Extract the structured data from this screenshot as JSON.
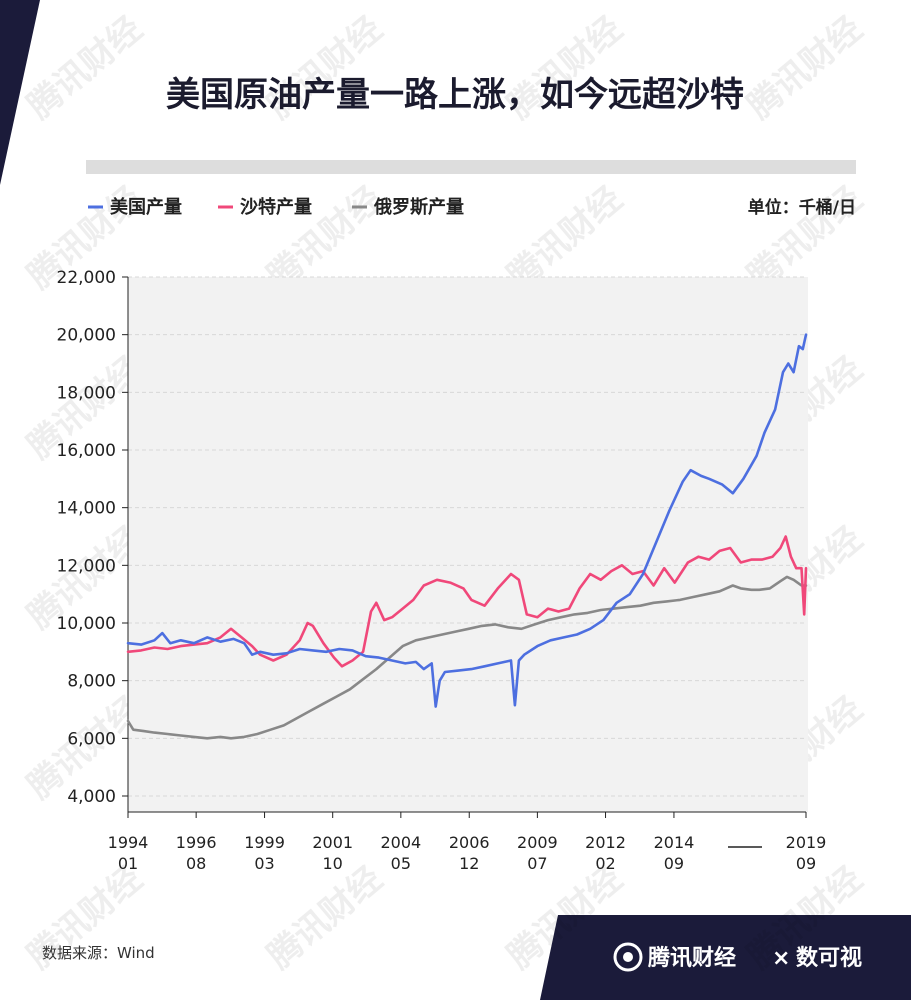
{
  "header": {
    "title": "美国原油产量一路上涨，如今远超沙特"
  },
  "legend": {
    "items": [
      {
        "label": "美国产量",
        "color": "#4d6fe0"
      },
      {
        "label": "沙特产量",
        "color": "#f0487a"
      },
      {
        "label": "俄罗斯产量",
        "color": "#888888"
      }
    ],
    "unit": "单位：千桶/日"
  },
  "footer": {
    "source": "数据来源：Wind",
    "brand": "腾讯财经",
    "cross": "×",
    "partner": "数可视"
  },
  "watermark": "腾讯财经",
  "chart_data": {
    "type": "line",
    "ylim": [
      4000,
      22000
    ],
    "y_ticks": [
      4000,
      6000,
      8000,
      10000,
      12000,
      14000,
      16000,
      18000,
      20000,
      22000
    ],
    "y_tick_labels": [
      "4,000",
      "6,000",
      "8,000",
      "10,000",
      "12,000",
      "14,000",
      "16,000",
      "18,000",
      "20,000",
      "22,000"
    ],
    "x_range": [
      1994.0,
      2019.67
    ],
    "x_ticks": [
      {
        "value": 1994.0,
        "label_top": "1994",
        "label_bottom": "01"
      },
      {
        "value": 1996.58,
        "label_top": "1996",
        "label_bottom": "08"
      },
      {
        "value": 1999.17,
        "label_top": "1999",
        "label_bottom": "03"
      },
      {
        "value": 2001.75,
        "label_top": "2001",
        "label_bottom": "10"
      },
      {
        "value": 2004.33,
        "label_top": "2004",
        "label_bottom": "05"
      },
      {
        "value": 2006.92,
        "label_top": "2006",
        "label_bottom": "12"
      },
      {
        "value": 2009.5,
        "label_top": "2009",
        "label_bottom": "07"
      },
      {
        "value": 2012.08,
        "label_top": "2012",
        "label_bottom": "02"
      },
      {
        "value": 2014.67,
        "label_top": "2014",
        "label_bottom": "09"
      },
      {
        "value": 2019.67,
        "label_top": "2019",
        "label_bottom": "09"
      }
    ],
    "series": [
      {
        "name": "美国产量",
        "color": "#4d6fe0",
        "points": [
          [
            1994.0,
            9300
          ],
          [
            1994.5,
            9250
          ],
          [
            1995.0,
            9400
          ],
          [
            1995.3,
            9650
          ],
          [
            1995.6,
            9300
          ],
          [
            1996.0,
            9400
          ],
          [
            1996.5,
            9300
          ],
          [
            1997.0,
            9500
          ],
          [
            1997.5,
            9350
          ],
          [
            1998.0,
            9450
          ],
          [
            1998.4,
            9300
          ],
          [
            1998.7,
            8900
          ],
          [
            1999.0,
            9000
          ],
          [
            1999.5,
            8900
          ],
          [
            2000.0,
            8950
          ],
          [
            2000.5,
            9100
          ],
          [
            2001.0,
            9050
          ],
          [
            2001.5,
            9000
          ],
          [
            2002.0,
            9100
          ],
          [
            2002.5,
            9050
          ],
          [
            2003.0,
            8850
          ],
          [
            2003.5,
            8800
          ],
          [
            2004.0,
            8700
          ],
          [
            2004.5,
            8600
          ],
          [
            2004.9,
            8650
          ],
          [
            2005.2,
            8400
          ],
          [
            2005.5,
            8600
          ],
          [
            2005.65,
            7100
          ],
          [
            2005.8,
            8000
          ],
          [
            2006.0,
            8300
          ],
          [
            2006.5,
            8350
          ],
          [
            2007.0,
            8400
          ],
          [
            2007.5,
            8500
          ],
          [
            2008.0,
            8600
          ],
          [
            2008.5,
            8700
          ],
          [
            2008.65,
            7150
          ],
          [
            2008.8,
            8700
          ],
          [
            2009.0,
            8900
          ],
          [
            2009.5,
            9200
          ],
          [
            2010.0,
            9400
          ],
          [
            2010.5,
            9500
          ],
          [
            2011.0,
            9600
          ],
          [
            2011.5,
            9800
          ],
          [
            2012.0,
            10100
          ],
          [
            2012.5,
            10700
          ],
          [
            2013.0,
            11000
          ],
          [
            2013.5,
            11700
          ],
          [
            2014.0,
            12800
          ],
          [
            2014.5,
            13900
          ],
          [
            2015.0,
            14900
          ],
          [
            2015.3,
            15300
          ],
          [
            2015.7,
            15100
          ],
          [
            2016.0,
            15000
          ],
          [
            2016.5,
            14800
          ],
          [
            2016.9,
            14500
          ],
          [
            2017.3,
            15000
          ],
          [
            2017.8,
            15800
          ],
          [
            2018.1,
            16600
          ],
          [
            2018.5,
            17400
          ],
          [
            2018.8,
            18700
          ],
          [
            2019.0,
            19000
          ],
          [
            2019.2,
            18700
          ],
          [
            2019.4,
            19600
          ],
          [
            2019.55,
            19500
          ],
          [
            2019.67,
            20000
          ]
        ]
      },
      {
        "name": "沙特产量",
        "color": "#f0487a",
        "points": [
          [
            1994.0,
            9000
          ],
          [
            1994.5,
            9050
          ],
          [
            1995.0,
            9150
          ],
          [
            1995.5,
            9100
          ],
          [
            1996.0,
            9200
          ],
          [
            1996.5,
            9250
          ],
          [
            1997.0,
            9300
          ],
          [
            1997.5,
            9500
          ],
          [
            1997.9,
            9800
          ],
          [
            1998.3,
            9500
          ],
          [
            1998.7,
            9200
          ],
          [
            1999.0,
            8900
          ],
          [
            1999.5,
            8700
          ],
          [
            2000.0,
            8900
          ],
          [
            2000.5,
            9400
          ],
          [
            2000.8,
            10000
          ],
          [
            2001.0,
            9900
          ],
          [
            2001.4,
            9300
          ],
          [
            2001.8,
            8800
          ],
          [
            2002.1,
            8500
          ],
          [
            2002.5,
            8700
          ],
          [
            2002.9,
            9000
          ],
          [
            2003.2,
            10400
          ],
          [
            2003.4,
            10700
          ],
          [
            2003.7,
            10100
          ],
          [
            2004.0,
            10200
          ],
          [
            2004.4,
            10500
          ],
          [
            2004.8,
            10800
          ],
          [
            2005.2,
            11300
          ],
          [
            2005.7,
            11500
          ],
          [
            2006.2,
            11400
          ],
          [
            2006.7,
            11200
          ],
          [
            2007.0,
            10800
          ],
          [
            2007.5,
            10600
          ],
          [
            2008.0,
            11200
          ],
          [
            2008.5,
            11700
          ],
          [
            2008.8,
            11500
          ],
          [
            2009.1,
            10300
          ],
          [
            2009.5,
            10200
          ],
          [
            2009.9,
            10500
          ],
          [
            2010.3,
            10400
          ],
          [
            2010.7,
            10500
          ],
          [
            2011.1,
            11200
          ],
          [
            2011.5,
            11700
          ],
          [
            2011.9,
            11500
          ],
          [
            2012.3,
            11800
          ],
          [
            2012.7,
            12000
          ],
          [
            2013.1,
            11700
          ],
          [
            2013.5,
            11800
          ],
          [
            2013.9,
            11300
          ],
          [
            2014.3,
            11900
          ],
          [
            2014.7,
            11400
          ],
          [
            2015.2,
            12100
          ],
          [
            2015.6,
            12300
          ],
          [
            2016.0,
            12200
          ],
          [
            2016.4,
            12500
          ],
          [
            2016.8,
            12600
          ],
          [
            2017.2,
            12100
          ],
          [
            2017.6,
            12200
          ],
          [
            2018.0,
            12200
          ],
          [
            2018.4,
            12300
          ],
          [
            2018.7,
            12600
          ],
          [
            2018.9,
            13000
          ],
          [
            2019.1,
            12300
          ],
          [
            2019.3,
            11900
          ],
          [
            2019.5,
            11900
          ],
          [
            2019.6,
            10300
          ],
          [
            2019.67,
            11900
          ]
        ]
      },
      {
        "name": "俄罗斯产量",
        "color": "#888888",
        "points": [
          [
            1994.0,
            6600
          ],
          [
            1994.2,
            6300
          ],
          [
            1994.6,
            6250
          ],
          [
            1995.0,
            6200
          ],
          [
            1995.5,
            6150
          ],
          [
            1996.0,
            6100
          ],
          [
            1996.5,
            6050
          ],
          [
            1997.0,
            6000
          ],
          [
            1997.5,
            6050
          ],
          [
            1997.9,
            6000
          ],
          [
            1998.4,
            6050
          ],
          [
            1998.9,
            6150
          ],
          [
            1999.4,
            6300
          ],
          [
            1999.9,
            6450
          ],
          [
            2000.4,
            6700
          ],
          [
            2000.9,
            6950
          ],
          [
            2001.4,
            7200
          ],
          [
            2001.9,
            7450
          ],
          [
            2002.4,
            7700
          ],
          [
            2002.9,
            8050
          ],
          [
            2003.4,
            8400
          ],
          [
            2003.9,
            8800
          ],
          [
            2004.4,
            9200
          ],
          [
            2004.9,
            9400
          ],
          [
            2005.4,
            9500
          ],
          [
            2005.9,
            9600
          ],
          [
            2006.4,
            9700
          ],
          [
            2006.9,
            9800
          ],
          [
            2007.4,
            9900
          ],
          [
            2007.9,
            9950
          ],
          [
            2008.4,
            9850
          ],
          [
            2008.9,
            9800
          ],
          [
            2009.4,
            9950
          ],
          [
            2009.9,
            10100
          ],
          [
            2010.4,
            10200
          ],
          [
            2010.9,
            10300
          ],
          [
            2011.4,
            10350
          ],
          [
            2011.9,
            10450
          ],
          [
            2012.4,
            10500
          ],
          [
            2012.9,
            10550
          ],
          [
            2013.4,
            10600
          ],
          [
            2013.9,
            10700
          ],
          [
            2014.4,
            10750
          ],
          [
            2014.9,
            10800
          ],
          [
            2015.4,
            10900
          ],
          [
            2015.9,
            11000
          ],
          [
            2016.4,
            11100
          ],
          [
            2016.9,
            11300
          ],
          [
            2017.2,
            11200
          ],
          [
            2017.6,
            11150
          ],
          [
            2017.9,
            11150
          ],
          [
            2018.3,
            11200
          ],
          [
            2018.7,
            11450
          ],
          [
            2018.95,
            11600
          ],
          [
            2019.2,
            11500
          ],
          [
            2019.5,
            11300
          ],
          [
            2019.67,
            11300
          ]
        ]
      }
    ]
  }
}
